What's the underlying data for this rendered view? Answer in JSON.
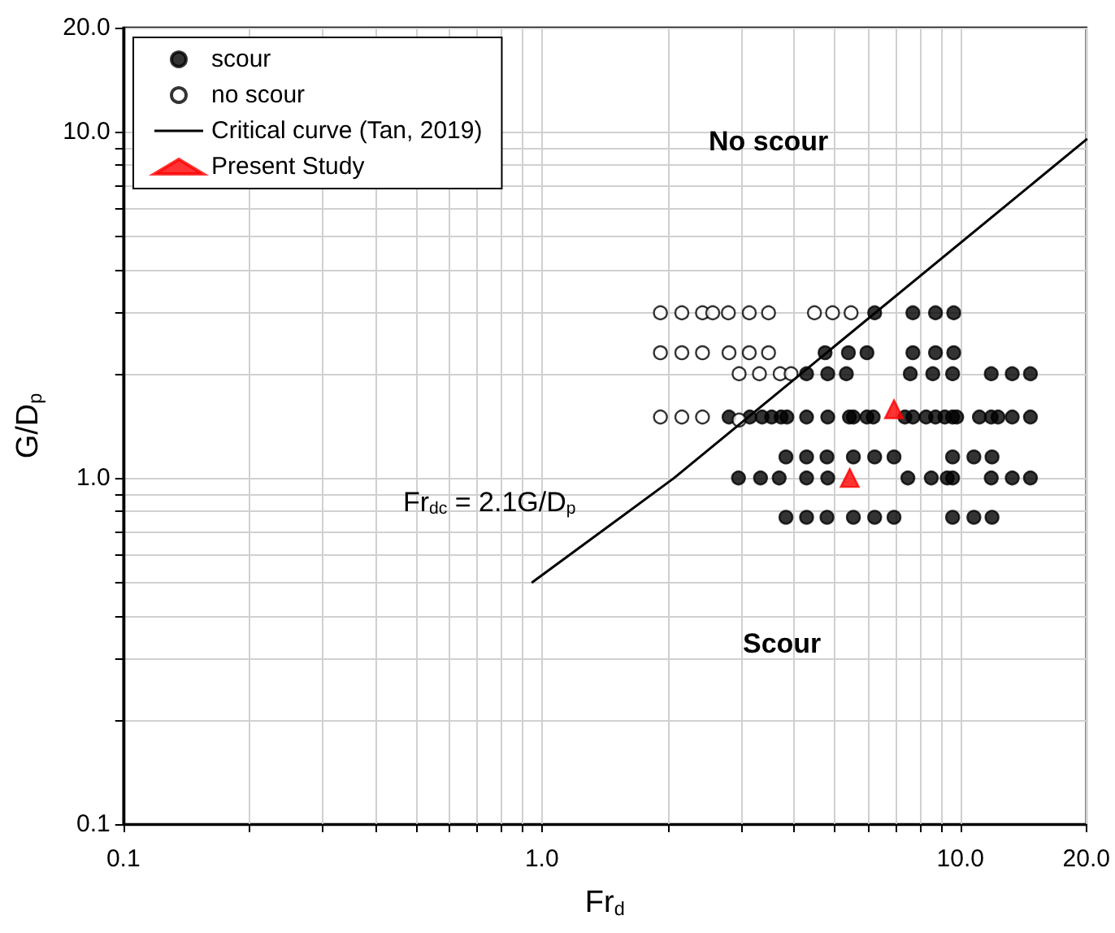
{
  "chart_data": {
    "type": "scatter",
    "xlabel": "Fr$_{d}$",
    "ylabel": "G/D$_{p}$",
    "log": "xy",
    "grid": true,
    "legend": "top left",
    "xlim": [
      0.1,
      20
    ],
    "ylim": [
      0.1,
      20
    ],
    "xticks": [
      0.1,
      {
        "value": 0.2,
        "label": null
      },
      {
        "value": 0.3,
        "label": null
      },
      {
        "value": 0.4,
        "label": null
      },
      {
        "value": 0.5,
        "label": null
      },
      {
        "value": 0.6,
        "label": null
      },
      {
        "value": 0.7,
        "label": null
      },
      {
        "value": 0.8,
        "label": null
      },
      {
        "value": 0.9,
        "label": null
      },
      {
        "value": 1,
        "label": "1.0"
      },
      {
        "value": 2,
        "label": null
      },
      {
        "value": 3,
        "label": null
      },
      {
        "value": 4,
        "label": null
      },
      {
        "value": 5,
        "label": null
      },
      {
        "value": 6,
        "label": null
      },
      {
        "value": 7,
        "label": null
      },
      {
        "value": 8,
        "label": null
      },
      {
        "value": 9,
        "label": null
      },
      {
        "value": 10,
        "label": "10.0"
      },
      {
        "value": 20,
        "label": "20.0"
      }
    ],
    "yticks": [
      0.1,
      {
        "value": 0.2,
        "label": null
      },
      {
        "value": 0.3,
        "label": null
      },
      {
        "value": 0.4,
        "label": null
      },
      {
        "value": 0.5,
        "label": null
      },
      {
        "value": 0.6,
        "label": null
      },
      {
        "value": 0.7,
        "label": null
      },
      {
        "value": 0.8,
        "label": null
      },
      {
        "value": 0.9,
        "label": null
      },
      {
        "value": 1,
        "label": "1.0"
      },
      {
        "value": 2,
        "label": null
      },
      {
        "value": 3,
        "label": null
      },
      {
        "value": 4,
        "label": null
      },
      {
        "value": 5,
        "label": null
      },
      {
        "value": 6,
        "label": null
      },
      {
        "value": 7,
        "label": null
      },
      {
        "value": 8,
        "label": null
      },
      {
        "value": 9,
        "label": null
      },
      {
        "value": 10,
        "label": "10.0"
      },
      {
        "value": 20,
        "label": "20.0"
      }
    ],
    "series": [
      {
        "name": "scour",
        "marker": "circle",
        "color": "#000000",
        "x": [
          6.24,
          7.7,
          8.72,
          9.64,
          4.75,
          5.4,
          5.98,
          7.7,
          8.72,
          9.64,
          4.29,
          4.82,
          5.34,
          7.59,
          8.59,
          9.58,
          11.85,
          13.3,
          14.7,
          2.8,
          3.14,
          3.36,
          3.54,
          3.73,
          3.85,
          4.29,
          4.82,
          5.43,
          5.55,
          5.98,
          6.19,
          7.37,
          7.7,
          8.28,
          8.72,
          9.18,
          9.58,
          9.8,
          11.1,
          11.85,
          12.3,
          13.3,
          14.7,
          3.83,
          4.29,
          4.8,
          5.55,
          6.24,
          6.94,
          9.58,
          10.77,
          11.9,
          2.95,
          3.33,
          3.69,
          4.29,
          4.82,
          7.49,
          8.52,
          9.3,
          9.58,
          11.85,
          13.3,
          14.7,
          3.83,
          4.29,
          4.8,
          5.55,
          6.24,
          6.94,
          9.58,
          10.77,
          11.9
        ],
        "values": [
          3.0,
          3.0,
          3.0,
          3.0,
          2.3,
          2.3,
          2.3,
          2.3,
          2.3,
          2.3,
          2.0,
          2.0,
          2.0,
          2.0,
          2.0,
          2.0,
          2.0,
          2.0,
          2.0,
          1.5,
          1.5,
          1.5,
          1.5,
          1.5,
          1.5,
          1.5,
          1.5,
          1.5,
          1.5,
          1.5,
          1.5,
          1.5,
          1.5,
          1.5,
          1.5,
          1.5,
          1.5,
          1.5,
          1.5,
          1.5,
          1.5,
          1.5,
          1.5,
          1.15,
          1.15,
          1.15,
          1.15,
          1.15,
          1.15,
          1.15,
          1.15,
          1.15,
          1.0,
          1.0,
          1.0,
          1.0,
          1.0,
          1.0,
          1.0,
          1.0,
          1.0,
          1.0,
          1.0,
          1.0,
          0.77,
          0.77,
          0.77,
          0.77,
          0.77,
          0.77,
          0.77,
          0.77,
          0.77
        ]
      },
      {
        "name": "no scour",
        "marker": "circle",
        "color": "#ffffff",
        "x": [
          1.92,
          2.16,
          2.42,
          2.56,
          2.79,
          3.13,
          3.48,
          4.48,
          4.95,
          5.48,
          1.92,
          2.16,
          2.42,
          2.8,
          3.13,
          3.48,
          2.96,
          3.31,
          3.71,
          3.94,
          1.92,
          2.16,
          2.42,
          2.96
        ],
        "values": [
          3.0,
          3.0,
          3.0,
          3.0,
          3.0,
          3.0,
          3.0,
          3.0,
          3.0,
          3.0,
          2.3,
          2.3,
          2.3,
          2.3,
          2.3,
          2.3,
          2.0,
          2.0,
          2.0,
          2.0,
          1.5,
          1.5,
          1.5,
          1.47
        ]
      },
      {
        "name": "Critical curve (Tan, 2019)",
        "type": "line",
        "marker": "none",
        "line_style": "solid",
        "color": "#000000",
        "x": [
          0.95,
          2.07,
          20
        ],
        "values": [
          0.5,
          1.0,
          9.5
        ]
      },
      {
        "name": "Present Study",
        "marker": "triangle",
        "color": "#ff0000",
        "x": [
          6.94,
          5.44
        ],
        "values": [
          1.58,
          1.0
        ]
      }
    ],
    "annotations": [
      "No scour",
      "Scour",
      "Fr$_{dc}$ = 2.1G/D$_{p}$"
    ]
  }
}
